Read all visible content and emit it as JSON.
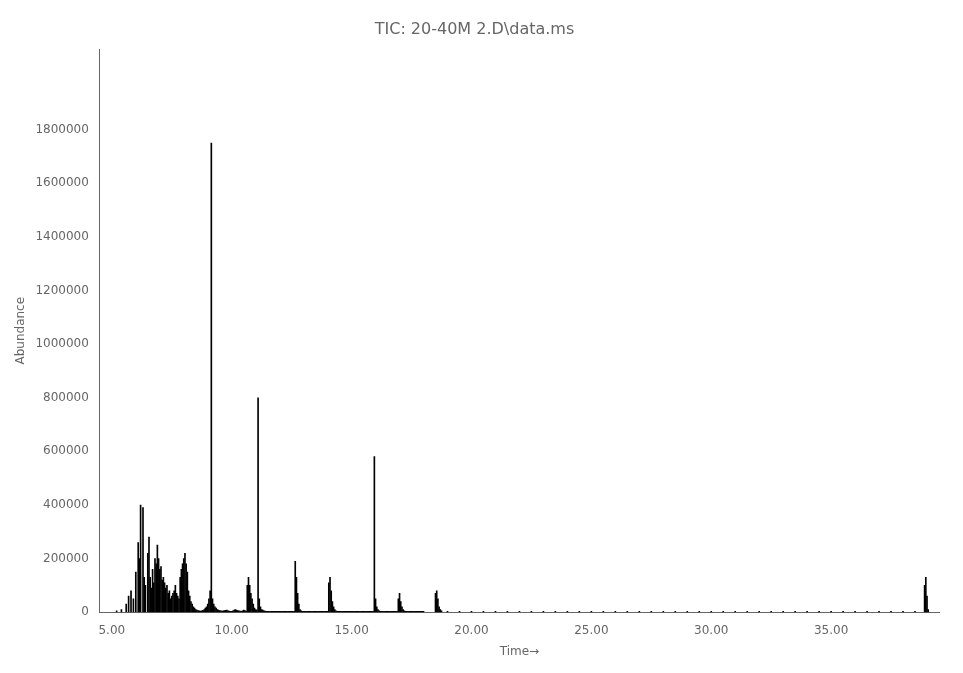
{
  "chart_data": {
    "type": "bar",
    "title": "TIC: 20-40M 2.D\\data.ms",
    "x_label": "Time→",
    "y_label": "Abundance",
    "color": "#000000",
    "grid": false,
    "xlim": [
      4.5,
      39.5
    ],
    "ylim": [
      0,
      2100000
    ],
    "xticks": [
      {
        "value": 5,
        "label": "5.00"
      },
      {
        "value": 10,
        "label": "10.00"
      },
      {
        "value": 15,
        "label": "15.00"
      },
      {
        "value": 20,
        "label": "20.00"
      },
      {
        "value": 25,
        "label": "25.00"
      },
      {
        "value": 30,
        "label": "30.00"
      },
      {
        "value": 35,
        "label": "35.00"
      }
    ],
    "yticks": [
      0,
      200000,
      400000,
      600000,
      800000,
      1000000,
      1200000,
      1400000,
      1600000,
      1800000
    ],
    "x": [
      5.2,
      5.4,
      5.6,
      5.7,
      5.8,
      5.9,
      6.0,
      6.1,
      6.15,
      6.2,
      6.3,
      6.35,
      6.4,
      6.5,
      6.55,
      6.6,
      6.65,
      6.7,
      6.75,
      6.8,
      6.85,
      6.9,
      6.95,
      7.0,
      7.05,
      7.1,
      7.15,
      7.2,
      7.25,
      7.3,
      7.35,
      7.4,
      7.45,
      7.5,
      7.55,
      7.6,
      7.65,
      7.7,
      7.75,
      7.8,
      7.85,
      7.9,
      7.95,
      8.0,
      8.05,
      8.1,
      8.15,
      8.2,
      8.25,
      8.3,
      8.35,
      8.4,
      8.45,
      8.5,
      8.55,
      8.6,
      8.65,
      8.7,
      8.75,
      8.8,
      8.85,
      8.9,
      8.95,
      9.0,
      9.05,
      9.1,
      9.15,
      9.2,
      9.25,
      9.3,
      9.35,
      9.4,
      9.45,
      9.5,
      9.55,
      9.6,
      9.65,
      9.7,
      9.75,
      9.8,
      9.85,
      9.9,
      9.95,
      10.0,
      10.05,
      10.1,
      10.15,
      10.2,
      10.25,
      10.3,
      10.35,
      10.4,
      10.45,
      10.5,
      10.55,
      10.6,
      10.65,
      10.7,
      10.75,
      10.8,
      10.85,
      10.9,
      10.95,
      11.0,
      11.05,
      11.1,
      11.15,
      11.2,
      11.25,
      11.3,
      11.35,
      11.4,
      11.45,
      11.5,
      11.55,
      11.6,
      11.65,
      11.7,
      11.75,
      11.8,
      11.85,
      11.9,
      11.95,
      12.0,
      12.05,
      12.1,
      12.15,
      12.2,
      12.25,
      12.3,
      12.35,
      12.4,
      12.45,
      12.5,
      12.55,
      12.6,
      12.65,
      12.7,
      12.75,
      12.8,
      12.85,
      12.9,
      12.95,
      13.0,
      13.05,
      13.1,
      13.15,
      13.2,
      13.25,
      13.3,
      13.35,
      13.4,
      13.45,
      13.5,
      13.55,
      13.6,
      13.65,
      13.7,
      13.75,
      13.8,
      13.85,
      13.9,
      13.95,
      14.0,
      14.05,
      14.1,
      14.15,
      14.2,
      14.25,
      14.3,
      14.35,
      14.4,
      14.45,
      14.5,
      14.55,
      14.6,
      14.65,
      14.7,
      14.75,
      14.8,
      14.85,
      14.9,
      14.95,
      15.0,
      15.05,
      15.1,
      15.15,
      15.2,
      15.25,
      15.3,
      15.35,
      15.4,
      15.45,
      15.5,
      15.55,
      15.6,
      15.65,
      15.7,
      15.75,
      15.8,
      15.85,
      15.9,
      15.95,
      16.0,
      16.05,
      16.1,
      16.15,
      16.2,
      16.25,
      16.3,
      16.35,
      16.4,
      16.45,
      16.5,
      16.55,
      16.6,
      16.65,
      16.7,
      16.75,
      16.8,
      16.85,
      16.9,
      16.95,
      17.0,
      17.05,
      17.1,
      17.15,
      17.2,
      17.25,
      17.3,
      17.35,
      17.4,
      17.45,
      17.5,
      17.55,
      17.6,
      17.65,
      17.7,
      17.75,
      17.8,
      17.85,
      17.9,
      17.95,
      18.0,
      18.5,
      18.55,
      18.6,
      18.65,
      18.7,
      18.75,
      19.0,
      19.5,
      20.0,
      20.5,
      21.0,
      21.5,
      22.0,
      22.5,
      23.0,
      23.5,
      24.0,
      24.5,
      25.0,
      25.5,
      26.0,
      26.5,
      27.0,
      27.5,
      28.0,
      28.5,
      29.0,
      29.5,
      30.0,
      30.5,
      31.0,
      31.5,
      32.0,
      32.5,
      33.0,
      33.5,
      34.0,
      34.5,
      35.0,
      35.5,
      36.0,
      36.5,
      37.0,
      37.5,
      38.0,
      38.5,
      38.9,
      38.95,
      39.0,
      39.05
    ],
    "values": [
      5000,
      10000,
      30000,
      60000,
      80000,
      50000,
      150000,
      260000,
      200000,
      400000,
      390000,
      130000,
      100000,
      220000,
      280000,
      130000,
      90000,
      160000,
      110000,
      200000,
      180000,
      250000,
      200000,
      160000,
      170000,
      120000,
      130000,
      110000,
      90000,
      100000,
      70000,
      80000,
      50000,
      60000,
      70000,
      80000,
      100000,
      70000,
      60000,
      50000,
      130000,
      160000,
      180000,
      200000,
      220000,
      180000,
      150000,
      80000,
      60000,
      40000,
      30000,
      20000,
      15000,
      10000,
      8000,
      6000,
      5000,
      4000,
      5000,
      7000,
      10000,
      15000,
      20000,
      30000,
      50000,
      80000,
      1750000,
      50000,
      30000,
      20000,
      15000,
      10000,
      8000,
      6000,
      5000,
      4000,
      5000,
      6000,
      7000,
      8000,
      5000,
      4000,
      3000,
      3000,
      5000,
      8000,
      10000,
      8000,
      6000,
      5000,
      4000,
      3000,
      5000,
      8000,
      6000,
      4000,
      100000,
      130000,
      100000,
      70000,
      50000,
      30000,
      15000,
      10000,
      8000,
      800000,
      50000,
      20000,
      10000,
      8000,
      5000,
      4000,
      3000,
      3000,
      3000,
      3000,
      3000,
      3000,
      3000,
      3000,
      3000,
      3000,
      3000,
      3000,
      3000,
      3000,
      3000,
      3000,
      3000,
      3000,
      3000,
      3000,
      3000,
      3000,
      3000,
      3000,
      190000,
      130000,
      70000,
      30000,
      10000,
      5000,
      3000,
      3000,
      3000,
      3000,
      3000,
      3000,
      3000,
      3000,
      3000,
      3000,
      3000,
      3000,
      3000,
      3000,
      3000,
      3000,
      3000,
      3000,
      3000,
      3000,
      3000,
      3000,
      110000,
      130000,
      80000,
      40000,
      20000,
      10000,
      5000,
      3000,
      3000,
      3000,
      3000,
      3000,
      3000,
      3000,
      3000,
      3000,
      3000,
      3000,
      3000,
      3000,
      3000,
      3000,
      3000,
      3000,
      3000,
      3000,
      3000,
      3000,
      3000,
      3000,
      3000,
      3000,
      3000,
      3000,
      3000,
      3000,
      3000,
      3000,
      580000,
      50000,
      20000,
      10000,
      5000,
      3000,
      3000,
      3000,
      3000,
      3000,
      3000,
      3000,
      3000,
      3000,
      3000,
      3000,
      3000,
      3000,
      3000,
      3000,
      50000,
      70000,
      40000,
      20000,
      10000,
      5000,
      3000,
      3000,
      3000,
      3000,
      3000,
      3000,
      3000,
      3000,
      3000,
      3000,
      3000,
      3000,
      3000,
      3000,
      3000,
      3000,
      70000,
      80000,
      50000,
      20000,
      10000,
      5000,
      3000,
      3000,
      3000,
      3000,
      3000,
      3000,
      3000,
      3000,
      3000,
      3000,
      3000,
      3000,
      3000,
      3000,
      3000,
      3000,
      3000,
      3000,
      3000,
      3000,
      3000,
      3000,
      3000,
      3000,
      3000,
      3000,
      3000,
      3000,
      3000,
      3000,
      3000,
      3000,
      3000,
      3000,
      3000,
      3000,
      3000,
      3000,
      3000,
      3000,
      100000,
      130000,
      60000,
      10000
    ]
  }
}
